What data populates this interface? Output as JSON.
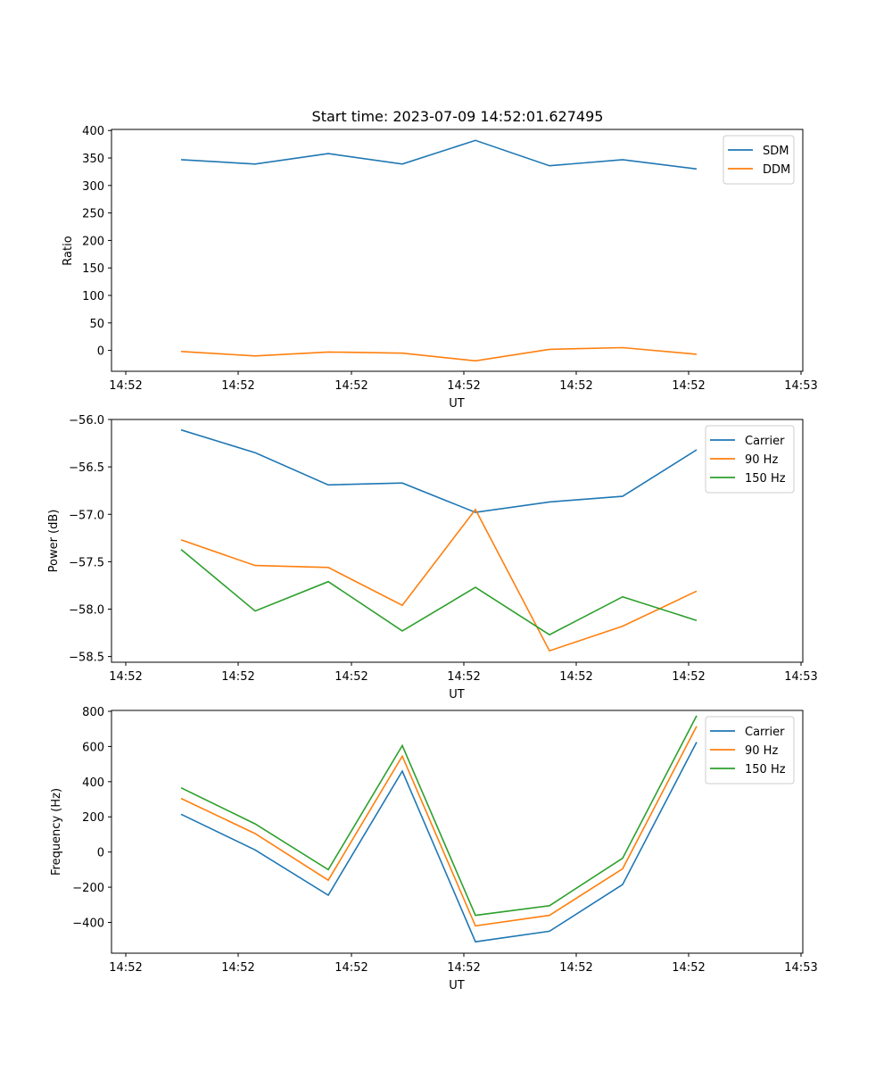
{
  "chart_data": [
    {
      "type": "line",
      "title": "Start time: 2023-07-09 14:52:01.627495",
      "xlabel": "UT",
      "ylabel": "Ratio",
      "x_ticks": [
        "14:52",
        "14:52",
        "14:52",
        "14:52",
        "14:52",
        "14:52",
        "14:52",
        "14:53"
      ],
      "ylim": [
        -38,
        402
      ],
      "y_ticks": [
        0,
        50,
        100,
        150,
        200,
        250,
        300,
        350,
        400
      ],
      "legend": "top-right",
      "series": [
        {
          "name": "SDM",
          "color": "#1f77b4",
          "values": [
            347,
            339,
            358,
            339,
            382,
            336,
            347,
            330
          ]
        },
        {
          "name": "DDM",
          "color": "#ff7f0e",
          "values": [
            -2,
            -10,
            -3,
            -5,
            -19,
            2,
            5,
            -7
          ]
        }
      ]
    },
    {
      "type": "line",
      "title": "",
      "xlabel": "UT",
      "ylabel": "Power (dB)",
      "x_ticks": [
        "14:52",
        "14:52",
        "14:52",
        "14:52",
        "14:52",
        "14:52",
        "14:52",
        "14:53"
      ],
      "ylim": [
        -58.56,
        -56.0
      ],
      "y_ticks": [
        -56.0,
        -56.5,
        -57.0,
        -57.5,
        -58.0,
        -58.5
      ],
      "legend": "top-right",
      "series": [
        {
          "name": "Carrier",
          "color": "#1f77b4",
          "values": [
            -56.11,
            -56.35,
            -56.69,
            -56.67,
            -56.98,
            -56.87,
            -56.81,
            -56.32
          ]
        },
        {
          "name": "90 Hz",
          "color": "#ff7f0e",
          "values": [
            -57.27,
            -57.54,
            -57.56,
            -57.96,
            -56.95,
            -58.44,
            -58.18,
            -57.81
          ]
        },
        {
          "name": "150 Hz",
          "color": "#2ca02c",
          "values": [
            -57.37,
            -58.02,
            -57.71,
            -58.23,
            -57.77,
            -58.27,
            -57.87,
            -58.12
          ]
        }
      ]
    },
    {
      "type": "line",
      "title": "",
      "xlabel": "UT",
      "ylabel": "Frequency (Hz)",
      "x_ticks": [
        "14:52",
        "14:52",
        "14:52",
        "14:52",
        "14:52",
        "14:52",
        "14:52",
        "14:53"
      ],
      "ylim": [
        -575,
        805
      ],
      "y_ticks": [
        800,
        600,
        400,
        200,
        0,
        -200,
        -400
      ],
      "legend": "top-right",
      "series": [
        {
          "name": "Carrier",
          "color": "#1f77b4",
          "values": [
            215,
            12,
            -245,
            460,
            -510,
            -450,
            -185,
            625
          ]
        },
        {
          "name": "90 Hz",
          "color": "#ff7f0e",
          "values": [
            305,
            105,
            -160,
            545,
            -420,
            -360,
            -95,
            715
          ]
        },
        {
          "name": "150 Hz",
          "color": "#2ca02c",
          "values": [
            365,
            160,
            -100,
            605,
            -360,
            -305,
            -35,
            775
          ]
        }
      ]
    }
  ]
}
